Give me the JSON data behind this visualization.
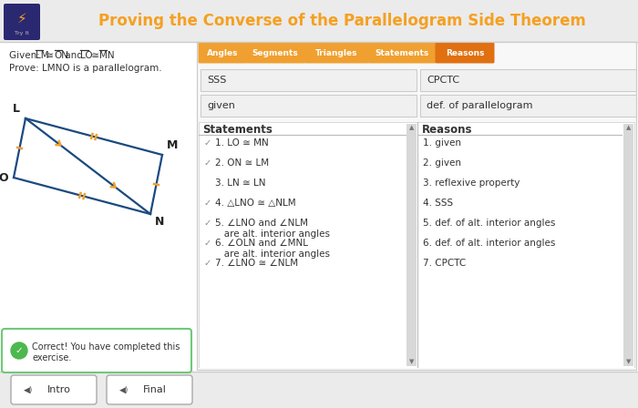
{
  "title": "Proving the Converse of the Parallelogram Side Theorem",
  "title_color": "#F5A020",
  "bg_color": "#FFFFFF",
  "header_bg": "#ECECEC",
  "tab_labels": [
    "Angles",
    "Segments",
    "Triangles",
    "Statements",
    "Reasons"
  ],
  "tab_active_idx": 4,
  "tab_color": "#F0A030",
  "tab_active_color": "#E07010",
  "drag_left": [
    "SSS",
    "given"
  ],
  "drag_right": [
    "CPCTC",
    "def. of parallelogram"
  ],
  "statements_header": "Statements",
  "reasons_header": "Reasons",
  "stmt_rows": [
    {
      "check": true,
      "text1": "1. LO ≅ MN",
      "overline_pairs": [
        [
          3,
          4
        ],
        [
          7,
          8
        ]
      ],
      "text2": null
    },
    {
      "check": true,
      "text1": "2. ON ≅ LM",
      "overline_pairs": [
        [
          3,
          4
        ],
        [
          7,
          8
        ]
      ],
      "text2": null
    },
    {
      "check": false,
      "text1": "3. LN ≅ LN",
      "overline_pairs": [
        [
          3,
          4
        ],
        [
          7,
          8
        ]
      ],
      "text2": null
    },
    {
      "check": true,
      "text1": "4. △LNO ≅ △NLM",
      "overline_pairs": [],
      "text2": null
    },
    {
      "check": true,
      "text1": "5. ∠LNO and ∠NLM",
      "overline_pairs": [],
      "text2": "   are alt. interior angles"
    },
    {
      "check": true,
      "text1": "6. ∠OLN and ∠MNL",
      "overline_pairs": [],
      "text2": "   are alt. interior angles"
    },
    {
      "check": true,
      "text1": "7. ∠LNO ≅ ∠NLM",
      "overline_pairs": [],
      "text2": null
    }
  ],
  "reasons": [
    "1. given",
    "2. given",
    "3. reflexive property",
    "4. SSS",
    "5. def. of alt. interior angles",
    "6. def. of alt. interior angles",
    "7. CPCTC"
  ],
  "success_msg1": "Correct! You have completed this",
  "success_msg2": "exercise.",
  "intro_btn": "Intro",
  "final_btn": "Final",
  "logo_bg": "#2A2870",
  "diagram_color": "#1A4A80",
  "tick_color": "#F0A030"
}
